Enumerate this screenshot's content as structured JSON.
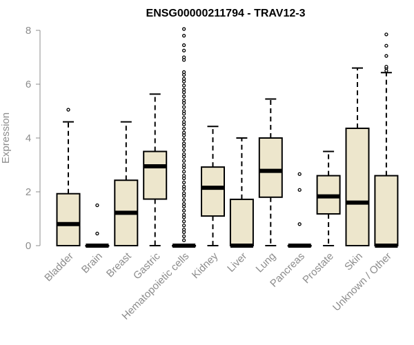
{
  "chart_data": {
    "type": "boxplot",
    "title": "ENSG00000211794 - TRAV12-3",
    "xlabel": "",
    "ylabel": "Expression",
    "ylim": [
      0,
      8
    ],
    "yticks": [
      0,
      2,
      4,
      6,
      8
    ],
    "grid": false,
    "colors": {
      "box_fill": "#ede6cc",
      "box_stroke": "#000000",
      "median": "#000000",
      "axis": "#8c8c8c",
      "title": "#000000"
    },
    "categories": [
      "Bladder",
      "Brain",
      "Breast",
      "Gastric",
      "Hematopoietic cells",
      "Kidney",
      "Liver",
      "Lung",
      "Pancreas",
      "Prostate",
      "Skin",
      "Unknown / Other"
    ],
    "boxes": [
      {
        "category": "Bladder",
        "q1": 0.0,
        "median": 0.8,
        "q3": 1.93,
        "whisker_low": 0.0,
        "whisker_high": 4.6,
        "outliers": [
          5.05
        ]
      },
      {
        "category": "Brain",
        "q1": 0.0,
        "median": 0.0,
        "q3": 0.0,
        "whisker_low": 0.0,
        "whisker_high": 0.0,
        "outliers": [
          0.45,
          1.5
        ]
      },
      {
        "category": "Breast",
        "q1": 0.0,
        "median": 1.22,
        "q3": 2.43,
        "whisker_low": 0.0,
        "whisker_high": 4.6,
        "outliers": []
      },
      {
        "category": "Gastric",
        "q1": 1.73,
        "median": 2.95,
        "q3": 3.5,
        "whisker_low": 0.0,
        "whisker_high": 5.63,
        "outliers": []
      },
      {
        "category": "Hematopoietic cells",
        "q1": 0.0,
        "median": 0.0,
        "q3": 0.0,
        "whisker_low": 0.0,
        "whisker_high": 0.0,
        "outliers": [
          0.2,
          0.35,
          0.5,
          0.6,
          0.75,
          0.9,
          1.05,
          1.15,
          1.3,
          1.45,
          1.55,
          1.7,
          1.85,
          1.95,
          2.1,
          2.2,
          2.35,
          2.5,
          2.6,
          2.75,
          2.9,
          3.0,
          3.15,
          3.3,
          3.4,
          3.55,
          3.7,
          3.8,
          3.95,
          4.1,
          4.2,
          4.35,
          4.5,
          4.6,
          4.75,
          4.9,
          5.0,
          5.15,
          5.3,
          5.4,
          5.55,
          5.7,
          5.8,
          5.95,
          6.1,
          6.2,
          6.35,
          6.45,
          6.9,
          7.0,
          7.25,
          7.45,
          7.8,
          8.05
        ]
      },
      {
        "category": "Kidney",
        "q1": 1.1,
        "median": 2.15,
        "q3": 2.92,
        "whisker_low": 0.0,
        "whisker_high": 4.43,
        "outliers": []
      },
      {
        "category": "Liver",
        "q1": 0.0,
        "median": 0.0,
        "q3": 1.72,
        "whisker_low": 0.0,
        "whisker_high": 4.0,
        "outliers": []
      },
      {
        "category": "Lung",
        "q1": 1.8,
        "median": 2.78,
        "q3": 4.0,
        "whisker_low": 0.0,
        "whisker_high": 5.45,
        "outliers": []
      },
      {
        "category": "Pancreas",
        "q1": 0.0,
        "median": 0.0,
        "q3": 0.0,
        "whisker_low": 0.0,
        "whisker_high": 0.0,
        "outliers": [
          0.8,
          2.07,
          2.66
        ]
      },
      {
        "category": "Prostate",
        "q1": 1.18,
        "median": 1.83,
        "q3": 2.6,
        "whisker_low": 0.0,
        "whisker_high": 3.5,
        "outliers": []
      },
      {
        "category": "Skin",
        "q1": 0.0,
        "median": 1.6,
        "q3": 4.36,
        "whisker_low": 0.0,
        "whisker_high": 6.6,
        "outliers": []
      },
      {
        "category": "Unknown / Other",
        "q1": 0.0,
        "median": 0.0,
        "q3": 2.6,
        "whisker_low": 0.0,
        "whisker_high": 6.43,
        "outliers": [
          6.5,
          6.6,
          6.65,
          7.05,
          7.43,
          7.85
        ]
      }
    ]
  }
}
